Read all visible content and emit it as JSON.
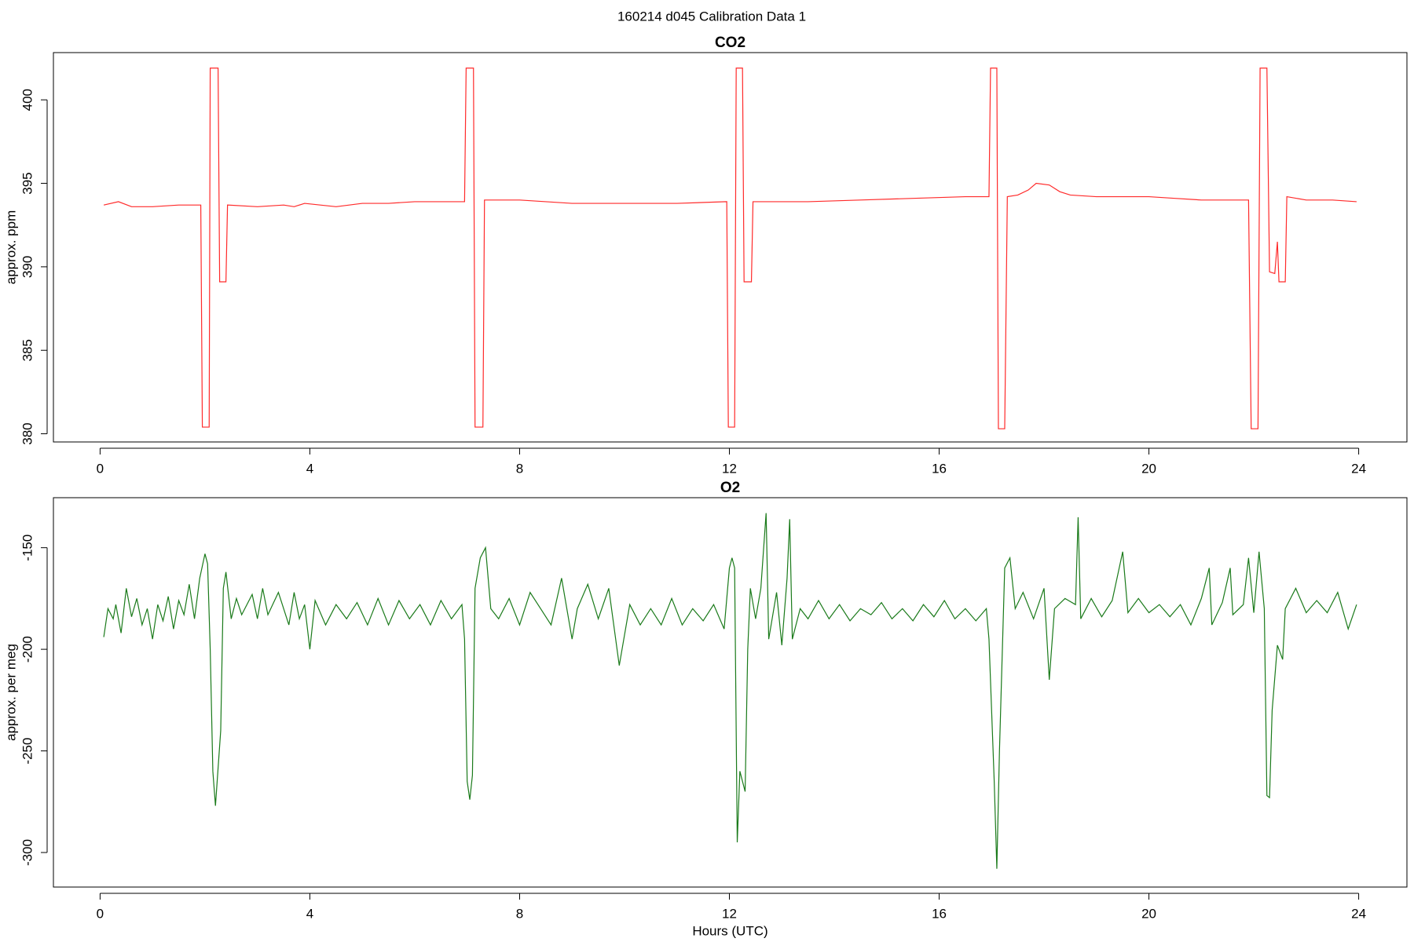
{
  "title": "160214   d045   Calibration Data 1",
  "chart_data": [
    {
      "type": "line",
      "title": "CO2",
      "ylabel": "approx. ppm",
      "xlim": [
        -0.89,
        24.92
      ],
      "xticks": [
        0,
        4,
        8,
        12,
        16,
        20,
        24
      ],
      "ylim": [
        379.51,
        402.83
      ],
      "yticks": [
        380,
        385,
        390,
        395,
        400
      ],
      "x": [
        0.07,
        0.35,
        0.6,
        1.0,
        1.5,
        1.92,
        1.95,
        2.08,
        2.1,
        2.25,
        2.28,
        2.4,
        2.43,
        3.0,
        3.5,
        3.7,
        3.9,
        4.5,
        5.0,
        5.5,
        6.0,
        6.5,
        6.95,
        6.98,
        7.12,
        7.15,
        7.3,
        7.33,
        8.0,
        9.0,
        10.0,
        11.0,
        11.95,
        11.98,
        12.1,
        12.13,
        12.25,
        12.28,
        12.42,
        12.45,
        13.5,
        14.5,
        15.5,
        16.5,
        16.95,
        16.98,
        17.1,
        17.13,
        17.25,
        17.3,
        17.5,
        17.7,
        17.85,
        18.1,
        18.3,
        18.5,
        19.0,
        19.5,
        20.0,
        20.5,
        21.0,
        21.9,
        21.95,
        22.08,
        22.12,
        22.25,
        22.3,
        22.4,
        22.45,
        22.48,
        22.6,
        22.63,
        23.0,
        23.5,
        23.96
      ],
      "series": [
        {
          "name": "CO2",
          "color": "#ff2a2a",
          "values": [
            393.7,
            393.9,
            393.6,
            393.6,
            393.7,
            393.7,
            380.4,
            380.4,
            401.9,
            401.9,
            389.1,
            389.1,
            393.7,
            393.6,
            393.7,
            393.6,
            393.8,
            393.6,
            393.8,
            393.8,
            393.9,
            393.9,
            393.9,
            401.9,
            401.9,
            380.4,
            380.4,
            394.0,
            394.0,
            393.8,
            393.8,
            393.8,
            393.9,
            380.4,
            380.4,
            401.9,
            401.9,
            389.1,
            389.1,
            393.9,
            393.9,
            394.0,
            394.1,
            394.2,
            394.2,
            401.9,
            401.9,
            380.3,
            380.3,
            394.2,
            394.3,
            394.6,
            395.0,
            394.9,
            394.5,
            394.3,
            394.2,
            394.2,
            394.2,
            394.1,
            394.0,
            394.0,
            380.3,
            380.3,
            401.9,
            401.9,
            389.7,
            389.6,
            391.5,
            389.1,
            389.1,
            394.2,
            394.0,
            394.0,
            393.9
          ]
        }
      ]
    },
    {
      "type": "line",
      "title": "O2",
      "ylabel": "approx. per meg",
      "xlabel": "Hours (UTC)",
      "xlim": [
        -0.89,
        24.92
      ],
      "xticks": [
        0,
        4,
        8,
        12,
        16,
        20,
        24
      ],
      "ylim": [
        -317.0,
        -125.4
      ],
      "yticks": [
        -300,
        -250,
        -200,
        -150
      ],
      "x": [
        0.07,
        0.15,
        0.25,
        0.3,
        0.4,
        0.5,
        0.6,
        0.7,
        0.8,
        0.9,
        1.0,
        1.1,
        1.2,
        1.3,
        1.4,
        1.5,
        1.6,
        1.7,
        1.8,
        1.9,
        2.0,
        2.05,
        2.1,
        2.15,
        2.2,
        2.3,
        2.35,
        2.4,
        2.5,
        2.6,
        2.7,
        2.9,
        3.0,
        3.1,
        3.2,
        3.4,
        3.6,
        3.7,
        3.8,
        3.9,
        4.0,
        4.1,
        4.3,
        4.5,
        4.7,
        4.9,
        5.1,
        5.3,
        5.5,
        5.7,
        5.9,
        6.1,
        6.3,
        6.5,
        6.7,
        6.9,
        6.95,
        7.0,
        7.05,
        7.1,
        7.15,
        7.25,
        7.35,
        7.45,
        7.6,
        7.8,
        8.0,
        8.2,
        8.4,
        8.6,
        8.8,
        9.0,
        9.1,
        9.3,
        9.5,
        9.7,
        9.9,
        10.1,
        10.3,
        10.5,
        10.7,
        10.9,
        11.1,
        11.3,
        11.5,
        11.7,
        11.9,
        12.0,
        12.05,
        12.1,
        12.15,
        12.2,
        12.3,
        12.35,
        12.4,
        12.5,
        12.6,
        12.7,
        12.75,
        12.9,
        13.0,
        13.1,
        13.15,
        13.2,
        13.35,
        13.5,
        13.7,
        13.9,
        14.1,
        14.3,
        14.5,
        14.7,
        14.9,
        15.1,
        15.3,
        15.5,
        15.7,
        15.9,
        16.1,
        16.3,
        16.5,
        16.7,
        16.9,
        16.95,
        17.05,
        17.1,
        17.15,
        17.25,
        17.35,
        17.45,
        17.6,
        17.8,
        18.0,
        18.1,
        18.2,
        18.4,
        18.6,
        18.65,
        18.7,
        18.9,
        19.1,
        19.3,
        19.5,
        19.6,
        19.8,
        20.0,
        20.2,
        20.4,
        20.6,
        20.8,
        21.0,
        21.15,
        21.2,
        21.4,
        21.55,
        21.6,
        21.8,
        21.9,
        22.0,
        22.1,
        22.2,
        22.25,
        22.3,
        22.35,
        22.45,
        22.55,
        22.6,
        22.8,
        23.0,
        23.2,
        23.4,
        23.6,
        23.8,
        23.96
      ],
      "series": [
        {
          "name": "O2",
          "color": "#1a7a1a",
          "values": [
            -194,
            -180,
            -185,
            -178,
            -192,
            -170,
            -184,
            -175,
            -188,
            -180,
            -195,
            -178,
            -186,
            -174,
            -190,
            -176,
            -183,
            -168,
            -185,
            -165,
            -153,
            -158,
            -200,
            -260,
            -277,
            -240,
            -170,
            -162,
            -185,
            -175,
            -183,
            -173,
            -185,
            -170,
            -183,
            -172,
            -188,
            -172,
            -185,
            -178,
            -200,
            -176,
            -188,
            -178,
            -185,
            -177,
            -188,
            -175,
            -188,
            -176,
            -185,
            -178,
            -188,
            -176,
            -185,
            -178,
            -195,
            -265,
            -274,
            -262,
            -170,
            -155,
            -150,
            -180,
            -185,
            -175,
            -188,
            -172,
            -180,
            -188,
            -165,
            -195,
            -180,
            -168,
            -185,
            -170,
            -208,
            -178,
            -188,
            -180,
            -188,
            -175,
            -188,
            -180,
            -186,
            -178,
            -190,
            -160,
            -155,
            -160,
            -295,
            -260,
            -270,
            -200,
            -170,
            -185,
            -170,
            -133,
            -195,
            -172,
            -198,
            -165,
            -136,
            -195,
            -180,
            -185,
            -176,
            -185,
            -178,
            -186,
            -180,
            -183,
            -177,
            -185,
            -180,
            -186,
            -178,
            -184,
            -176,
            -185,
            -180,
            -186,
            -180,
            -195,
            -265,
            -308,
            -250,
            -160,
            -155,
            -180,
            -172,
            -185,
            -170,
            -215,
            -180,
            -175,
            -178,
            -135,
            -185,
            -175,
            -184,
            -176,
            -152,
            -182,
            -175,
            -182,
            -178,
            -184,
            -178,
            -188,
            -175,
            -160,
            -188,
            -177,
            -160,
            -183,
            -178,
            -155,
            -182,
            -152,
            -180,
            -272,
            -273,
            -230,
            -198,
            -205,
            -180,
            -170,
            -182,
            -176,
            -182,
            -172,
            -190,
            -178
          ]
        }
      ]
    }
  ]
}
